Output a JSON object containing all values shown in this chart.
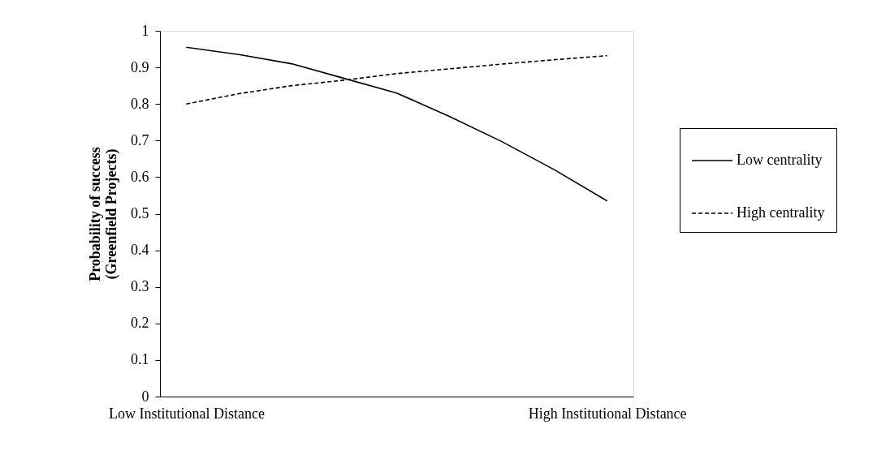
{
  "chart_data": {
    "type": "line",
    "ylabel": "Probability of success\n(Greenfield Projects)",
    "categories": [
      "Low Institutional Distance",
      null,
      null,
      null,
      null,
      null,
      null,
      null,
      "High Institutional Distance"
    ],
    "series": [
      {
        "name": "Low centrality",
        "color": "#000000",
        "line_style": "solid",
        "values": [
          0.955,
          0.935,
          0.91,
          0.87,
          0.83,
          0.766,
          0.697,
          0.62,
          0.535
        ]
      },
      {
        "name": "High centrality",
        "color": "#000000",
        "line_style": "dashed",
        "values": [
          0.8,
          0.828,
          0.85,
          0.865,
          0.883,
          0.896,
          0.909,
          0.921,
          0.932
        ]
      }
    ],
    "ylim": [
      0,
      1
    ],
    "yticks": [
      0,
      0.1,
      0.2,
      0.3,
      0.4,
      0.5,
      0.6,
      0.7,
      0.8,
      0.9,
      1
    ],
    "grid": false,
    "legend": "right",
    "marker": "none"
  }
}
